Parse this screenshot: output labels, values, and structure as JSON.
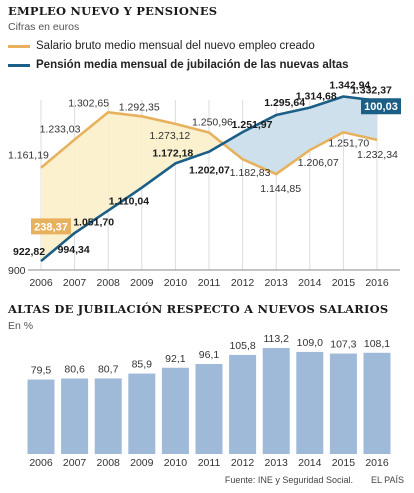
{
  "chart_data": [
    {
      "type": "line",
      "title": "EMPLEO NUEVO Y PENSIONES",
      "subtitle": "Cifras en euros",
      "x": [
        "2006",
        "2007",
        "2008",
        "2009",
        "2010",
        "2011",
        "2012",
        "2013",
        "2014",
        "2015",
        "2016"
      ],
      "ylim": [
        900,
        1380
      ],
      "y_tick_label": "900",
      "series": [
        {
          "name": "Salario bruto medio mensual del nuevo empleo creado",
          "color": "#e8b15d",
          "values": [
            1161.19,
            1233.03,
            1302.65,
            1292.35,
            1273.12,
            1250.96,
            1182.83,
            1144.85,
            1206.07,
            1251.7,
            1232.34
          ],
          "labels": [
            "1.161,19",
            "1.233,03",
            "1.302,65",
            "1.292,35",
            "1.273,12",
            "1.250,96",
            "1.182,83",
            "1.144,85",
            "1.206,07",
            "1.251,70",
            "1.232,34"
          ]
        },
        {
          "name": "Pensión media mensual de jubilación de las nuevas altas",
          "color": "#1b5e86",
          "values": [
            922.82,
            994.34,
            1051.7,
            1110.04,
            1172.18,
            1202.07,
            1251.97,
            1295.64,
            1314.68,
            1342.94,
            1332.37
          ],
          "labels": [
            "922,82",
            "994,34",
            "1.051,70",
            "1.110,04",
            "1.172,18",
            "1.202,07",
            "1.251,97",
            "1.295,64",
            "1.314,68",
            "1.342,94",
            "1.332,37"
          ]
        }
      ],
      "gap_annotations": [
        {
          "year": "2006",
          "label": "238,37",
          "color": "#e8b15d"
        },
        {
          "year": "2016",
          "label": "100,03",
          "color": "#1b5e86"
        }
      ],
      "fill_colors": {
        "salary_above": "#fbf1cf",
        "pension_above": "#cde0ec"
      }
    },
    {
      "type": "bar",
      "title": "ALTAS DE JUBILACIÓN RESPECTO A NUEVOS SALARIOS",
      "subtitle": "En %",
      "categories": [
        "2006",
        "2007",
        "2008",
        "2009",
        "2010",
        "2011",
        "2012",
        "2013",
        "2014",
        "2015",
        "2016"
      ],
      "values": [
        79.5,
        80.6,
        80.7,
        85.9,
        92.1,
        96.1,
        105.8,
        113.2,
        109.0,
        107.3,
        108.1
      ],
      "labels": [
        "79,5",
        "80,6",
        "80,7",
        "85,9",
        "92,1",
        "96,1",
        "105,8",
        "113,2",
        "109,0",
        "107,3",
        "108,1"
      ],
      "color": "#9fb9d8"
    }
  ],
  "footer": {
    "source": "Fuente: INE y Seguridad Social.",
    "brand": "EL PAÍS"
  }
}
